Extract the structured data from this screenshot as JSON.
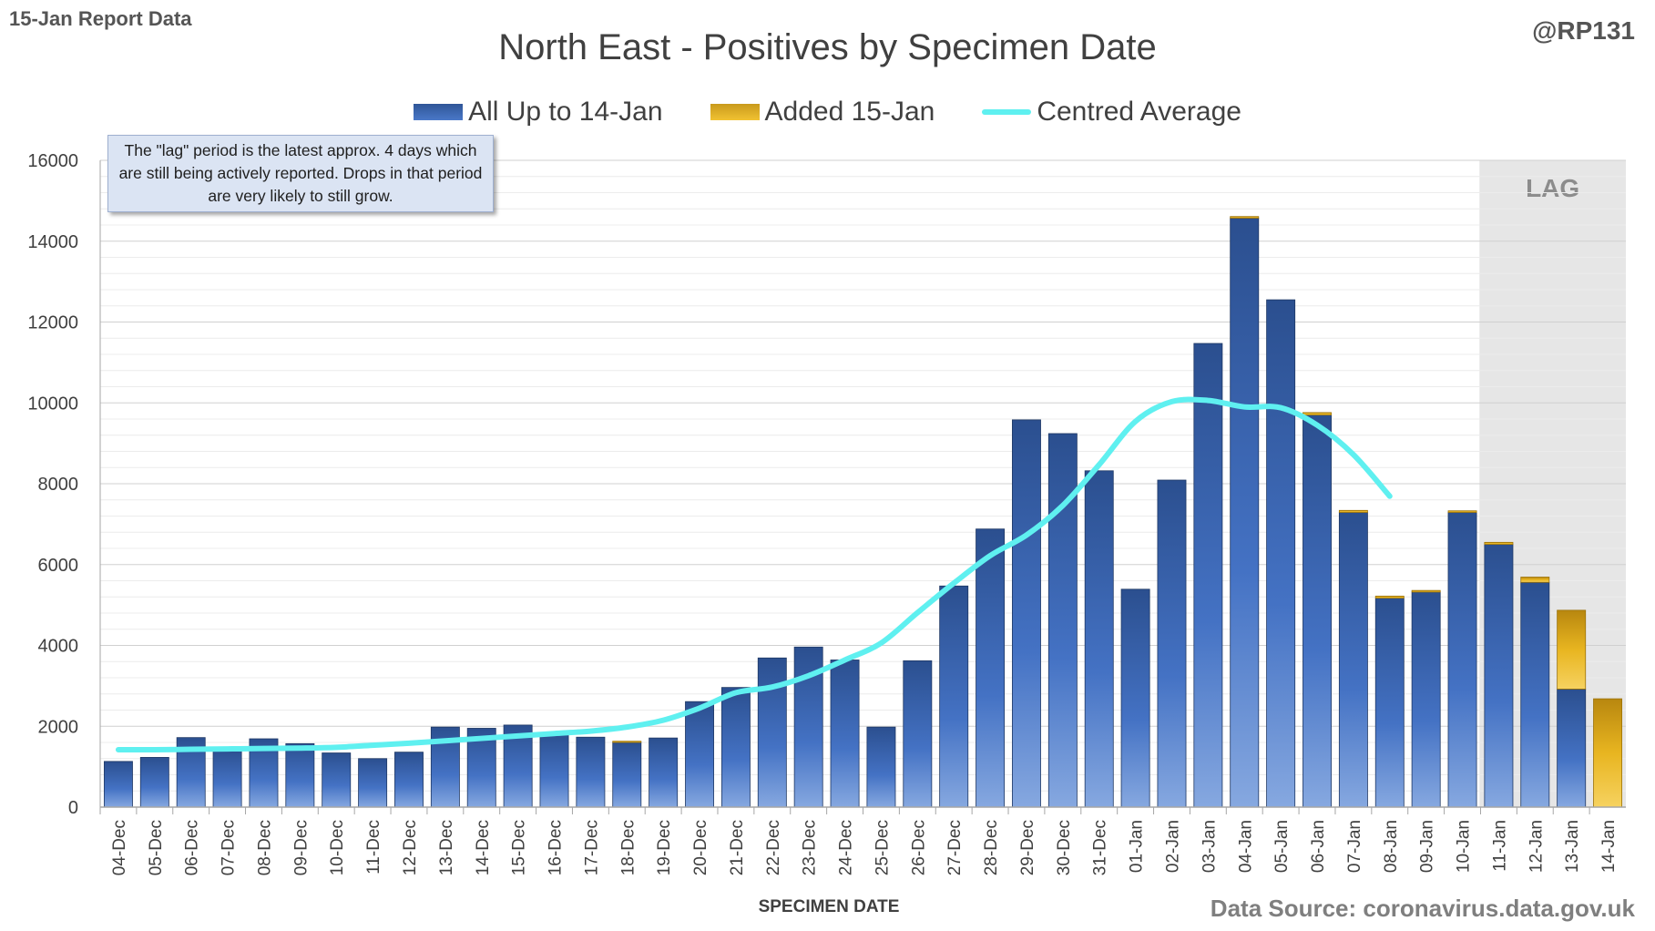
{
  "header": {
    "report_label": "15-Jan Report Data",
    "handle": "@RP131",
    "source": "Data Source: coronavirus.data.gov.uk"
  },
  "note": "The \"lag\" period is the latest approx. 4 days which are still being actively reported. Drops in that period are very likely to still grow.",
  "colors": {
    "bar_base": "#2f5597",
    "bar_added": "#e8b520",
    "average_line": "#5ff0f0",
    "lag_shade": "#e6e6e6"
  },
  "chart_data": {
    "type": "bar",
    "stacked": true,
    "title": "North East - Positives by Specimen Date",
    "xlabel": "SPECIMEN DATE",
    "ylabel": "",
    "ylim": [
      0,
      16000
    ],
    "yticks": [
      0,
      2000,
      4000,
      6000,
      8000,
      10000,
      12000,
      14000,
      16000
    ],
    "grid": true,
    "legend_position": "top",
    "categories": [
      "04-Dec",
      "05-Dec",
      "06-Dec",
      "07-Dec",
      "08-Dec",
      "09-Dec",
      "10-Dec",
      "11-Dec",
      "12-Dec",
      "13-Dec",
      "14-Dec",
      "15-Dec",
      "16-Dec",
      "17-Dec",
      "18-Dec",
      "19-Dec",
      "20-Dec",
      "21-Dec",
      "22-Dec",
      "23-Dec",
      "24-Dec",
      "25-Dec",
      "26-Dec",
      "27-Dec",
      "28-Dec",
      "29-Dec",
      "30-Dec",
      "31-Dec",
      "01-Jan",
      "02-Jan",
      "03-Jan",
      "04-Jan",
      "05-Jan",
      "06-Jan",
      "07-Jan",
      "08-Jan",
      "09-Jan",
      "10-Jan",
      "11-Jan",
      "12-Jan",
      "13-Jan",
      "14-Jan"
    ],
    "series": [
      {
        "name": "All Up to 14-Jan",
        "kind": "bar",
        "values": [
          1130,
          1230,
          1720,
          1420,
          1690,
          1570,
          1340,
          1200,
          1360,
          1980,
          1950,
          2030,
          1830,
          1730,
          1600,
          1710,
          2610,
          2960,
          3690,
          3960,
          3640,
          1980,
          3620,
          5470,
          6880,
          9580,
          9240,
          8320,
          5390,
          8090,
          11470,
          14570,
          12550,
          9700,
          7290,
          5170,
          5320,
          7290,
          6500,
          5560,
          2920,
          0
        ]
      },
      {
        "name": "Added 15-Jan",
        "kind": "bar",
        "values": [
          0,
          0,
          0,
          0,
          0,
          0,
          0,
          0,
          0,
          0,
          0,
          0,
          0,
          0,
          30,
          0,
          0,
          0,
          0,
          0,
          0,
          0,
          0,
          0,
          0,
          0,
          0,
          0,
          0,
          0,
          0,
          40,
          0,
          60,
          50,
          50,
          40,
          40,
          50,
          130,
          1950,
          2680
        ]
      },
      {
        "name": "Centred Average",
        "kind": "line",
        "values": [
          1420,
          1420,
          1430,
          1440,
          1450,
          1460,
          1480,
          1530,
          1580,
          1640,
          1700,
          1760,
          1820,
          1880,
          1980,
          2150,
          2450,
          2830,
          2970,
          3250,
          3640,
          4060,
          4810,
          5540,
          6220,
          6730,
          7460,
          8470,
          9540,
          10030,
          10060,
          9900,
          9880,
          9450,
          8720,
          7690,
          null,
          null,
          null,
          null,
          null,
          null
        ]
      }
    ],
    "lag_region": {
      "label": "LAG",
      "from": "11-Jan",
      "to": "14-Jan"
    }
  }
}
